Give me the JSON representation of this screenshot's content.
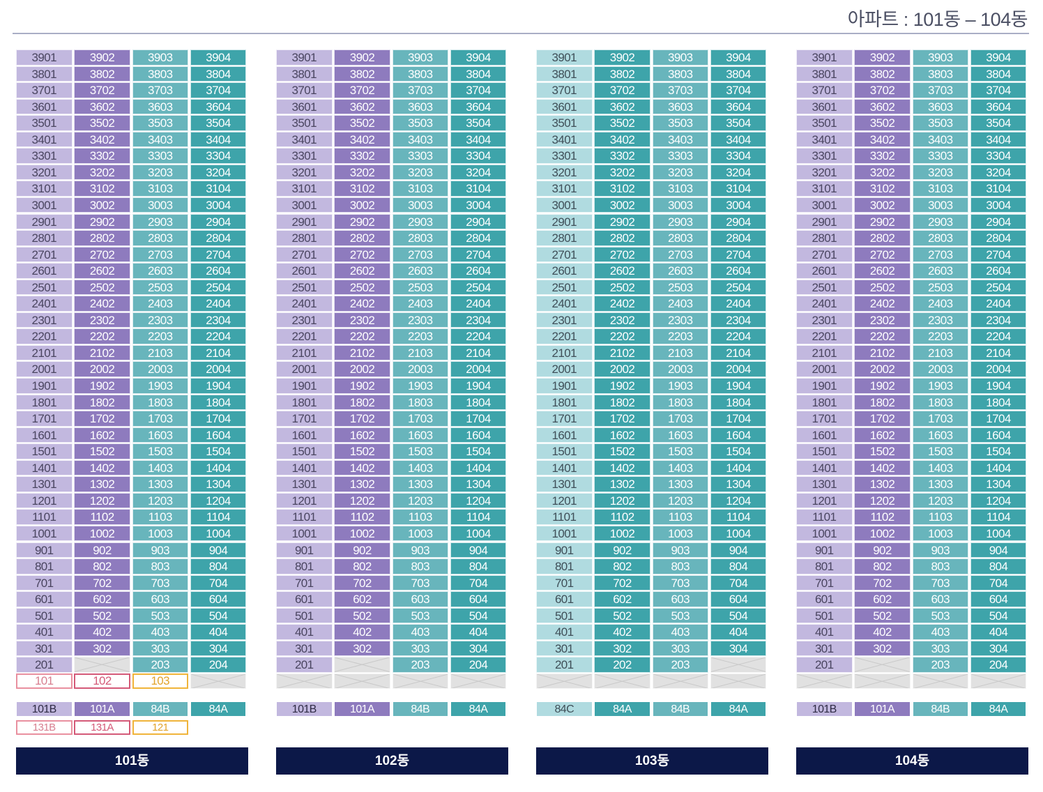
{
  "header": {
    "title": "아파트 : 101동 – 104동"
  },
  "colors": {
    "lav": "#c2b8df",
    "pur": "#8e7bbe",
    "tl": "#68b5bc",
    "teal": "#3ea4aa",
    "ltb": "#b0dbe0",
    "empty": "#e1e1e1",
    "label_bg": "#0c1848"
  },
  "top_floor": 39,
  "buildings": [
    {
      "label": "101동",
      "line_colors": [
        "lav",
        "pur",
        "tl",
        "teal"
      ],
      "types": [
        "101B",
        "101A",
        "84B",
        "84A"
      ],
      "empty_units": [
        "202"
      ],
      "ground_floor": [
        {
          "unit": "101",
          "style": "ob-pink"
        },
        {
          "unit": "102",
          "style": "ob-red"
        },
        {
          "unit": "103",
          "style": "ob-gold"
        },
        {
          "unit": "",
          "style": "empty"
        }
      ],
      "extra_types": [
        {
          "label": "131B",
          "style": "ob-pink"
        },
        {
          "label": "131A",
          "style": "ob-red"
        },
        {
          "label": "121",
          "style": "ob-gold"
        }
      ]
    },
    {
      "label": "102동",
      "line_colors": [
        "lav",
        "pur",
        "tl",
        "teal"
      ],
      "types": [
        "101B",
        "101A",
        "84B",
        "84A"
      ],
      "empty_units": [
        "202"
      ],
      "ground_floor": [
        {
          "unit": "",
          "style": "empty"
        },
        {
          "unit": "",
          "style": "empty"
        },
        {
          "unit": "",
          "style": "empty"
        },
        {
          "unit": "",
          "style": "empty"
        }
      ],
      "extra_types": []
    },
    {
      "label": "103동",
      "line_colors": [
        "ltb",
        "teal",
        "tl",
        "teal"
      ],
      "types": [
        "84C",
        "84A",
        "84B",
        "84A"
      ],
      "empty_units": [
        "204"
      ],
      "ground_floor": [
        {
          "unit": "",
          "style": "empty"
        },
        {
          "unit": "",
          "style": "empty"
        },
        {
          "unit": "",
          "style": "empty"
        },
        {
          "unit": "",
          "style": "empty"
        }
      ],
      "extra_types": []
    },
    {
      "label": "104동",
      "line_colors": [
        "lav",
        "pur",
        "tl",
        "teal"
      ],
      "types": [
        "101B",
        "101A",
        "84B",
        "84A"
      ],
      "empty_units": [
        "202"
      ],
      "ground_floor": [
        {
          "unit": "",
          "style": "empty"
        },
        {
          "unit": "",
          "style": "empty"
        },
        {
          "unit": "",
          "style": "empty"
        },
        {
          "unit": "",
          "style": "empty"
        }
      ],
      "extra_types": []
    }
  ]
}
